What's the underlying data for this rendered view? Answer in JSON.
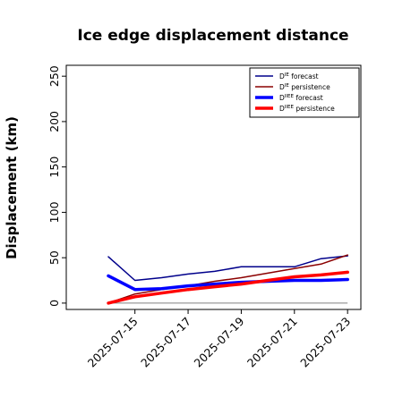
{
  "chart_data": {
    "type": "line",
    "title": "Ice edge displacement distance",
    "xlabel": "",
    "ylabel": "Displacement (km)",
    "x": [
      "2025-07-14",
      "2025-07-15",
      "2025-07-16",
      "2025-07-17",
      "2025-07-18",
      "2025-07-19",
      "2025-07-20",
      "2025-07-21",
      "2025-07-22",
      "2025-07-23"
    ],
    "x_ticks": [
      "2025-07-15",
      "2025-07-17",
      "2025-07-19",
      "2025-07-21",
      "2025-07-23"
    ],
    "highlight_tick": "2025-07-15",
    "highlight_color": "#228B22",
    "y_ticks": [
      0,
      50,
      100,
      150,
      200,
      250
    ],
    "ylim": [
      -7,
      262
    ],
    "xlim": [
      "2025-07-12 10:00",
      "2025-07-23 12:00"
    ],
    "baseline": 0,
    "legend_position": "top-right",
    "grid": false,
    "series": [
      {
        "name": "D^IE forecast",
        "name_base": "D",
        "name_sup": "IE",
        "name_rest": " forecast",
        "color": "#00008B",
        "width": 1.5,
        "values": [
          51,
          25,
          28,
          32,
          35,
          40,
          40,
          40,
          49,
          52
        ]
      },
      {
        "name": "D^IE persistence",
        "name_base": "D",
        "name_sup": "IE",
        "name_rest": " persistence",
        "color": "#8B0000",
        "width": 1.5,
        "values": [
          0,
          10,
          15,
          19,
          24,
          28,
          33,
          38,
          43,
          53
        ]
      },
      {
        "name": "D^IIEE forecast",
        "name_base": "D",
        "name_sup": "IIEE",
        "name_rest": " forecast",
        "color": "#0000FF",
        "width": 3.5,
        "values": [
          30,
          15,
          16,
          19,
          21,
          23,
          24,
          25,
          25,
          26
        ]
      },
      {
        "name": "D^IIEE persistence",
        "name_base": "D",
        "name_sup": "IIEE",
        "name_rest": " persistence",
        "color": "#FF0000",
        "width": 3.5,
        "values": [
          0,
          7,
          11,
          15,
          18,
          21,
          25,
          29,
          31,
          34
        ]
      }
    ]
  }
}
